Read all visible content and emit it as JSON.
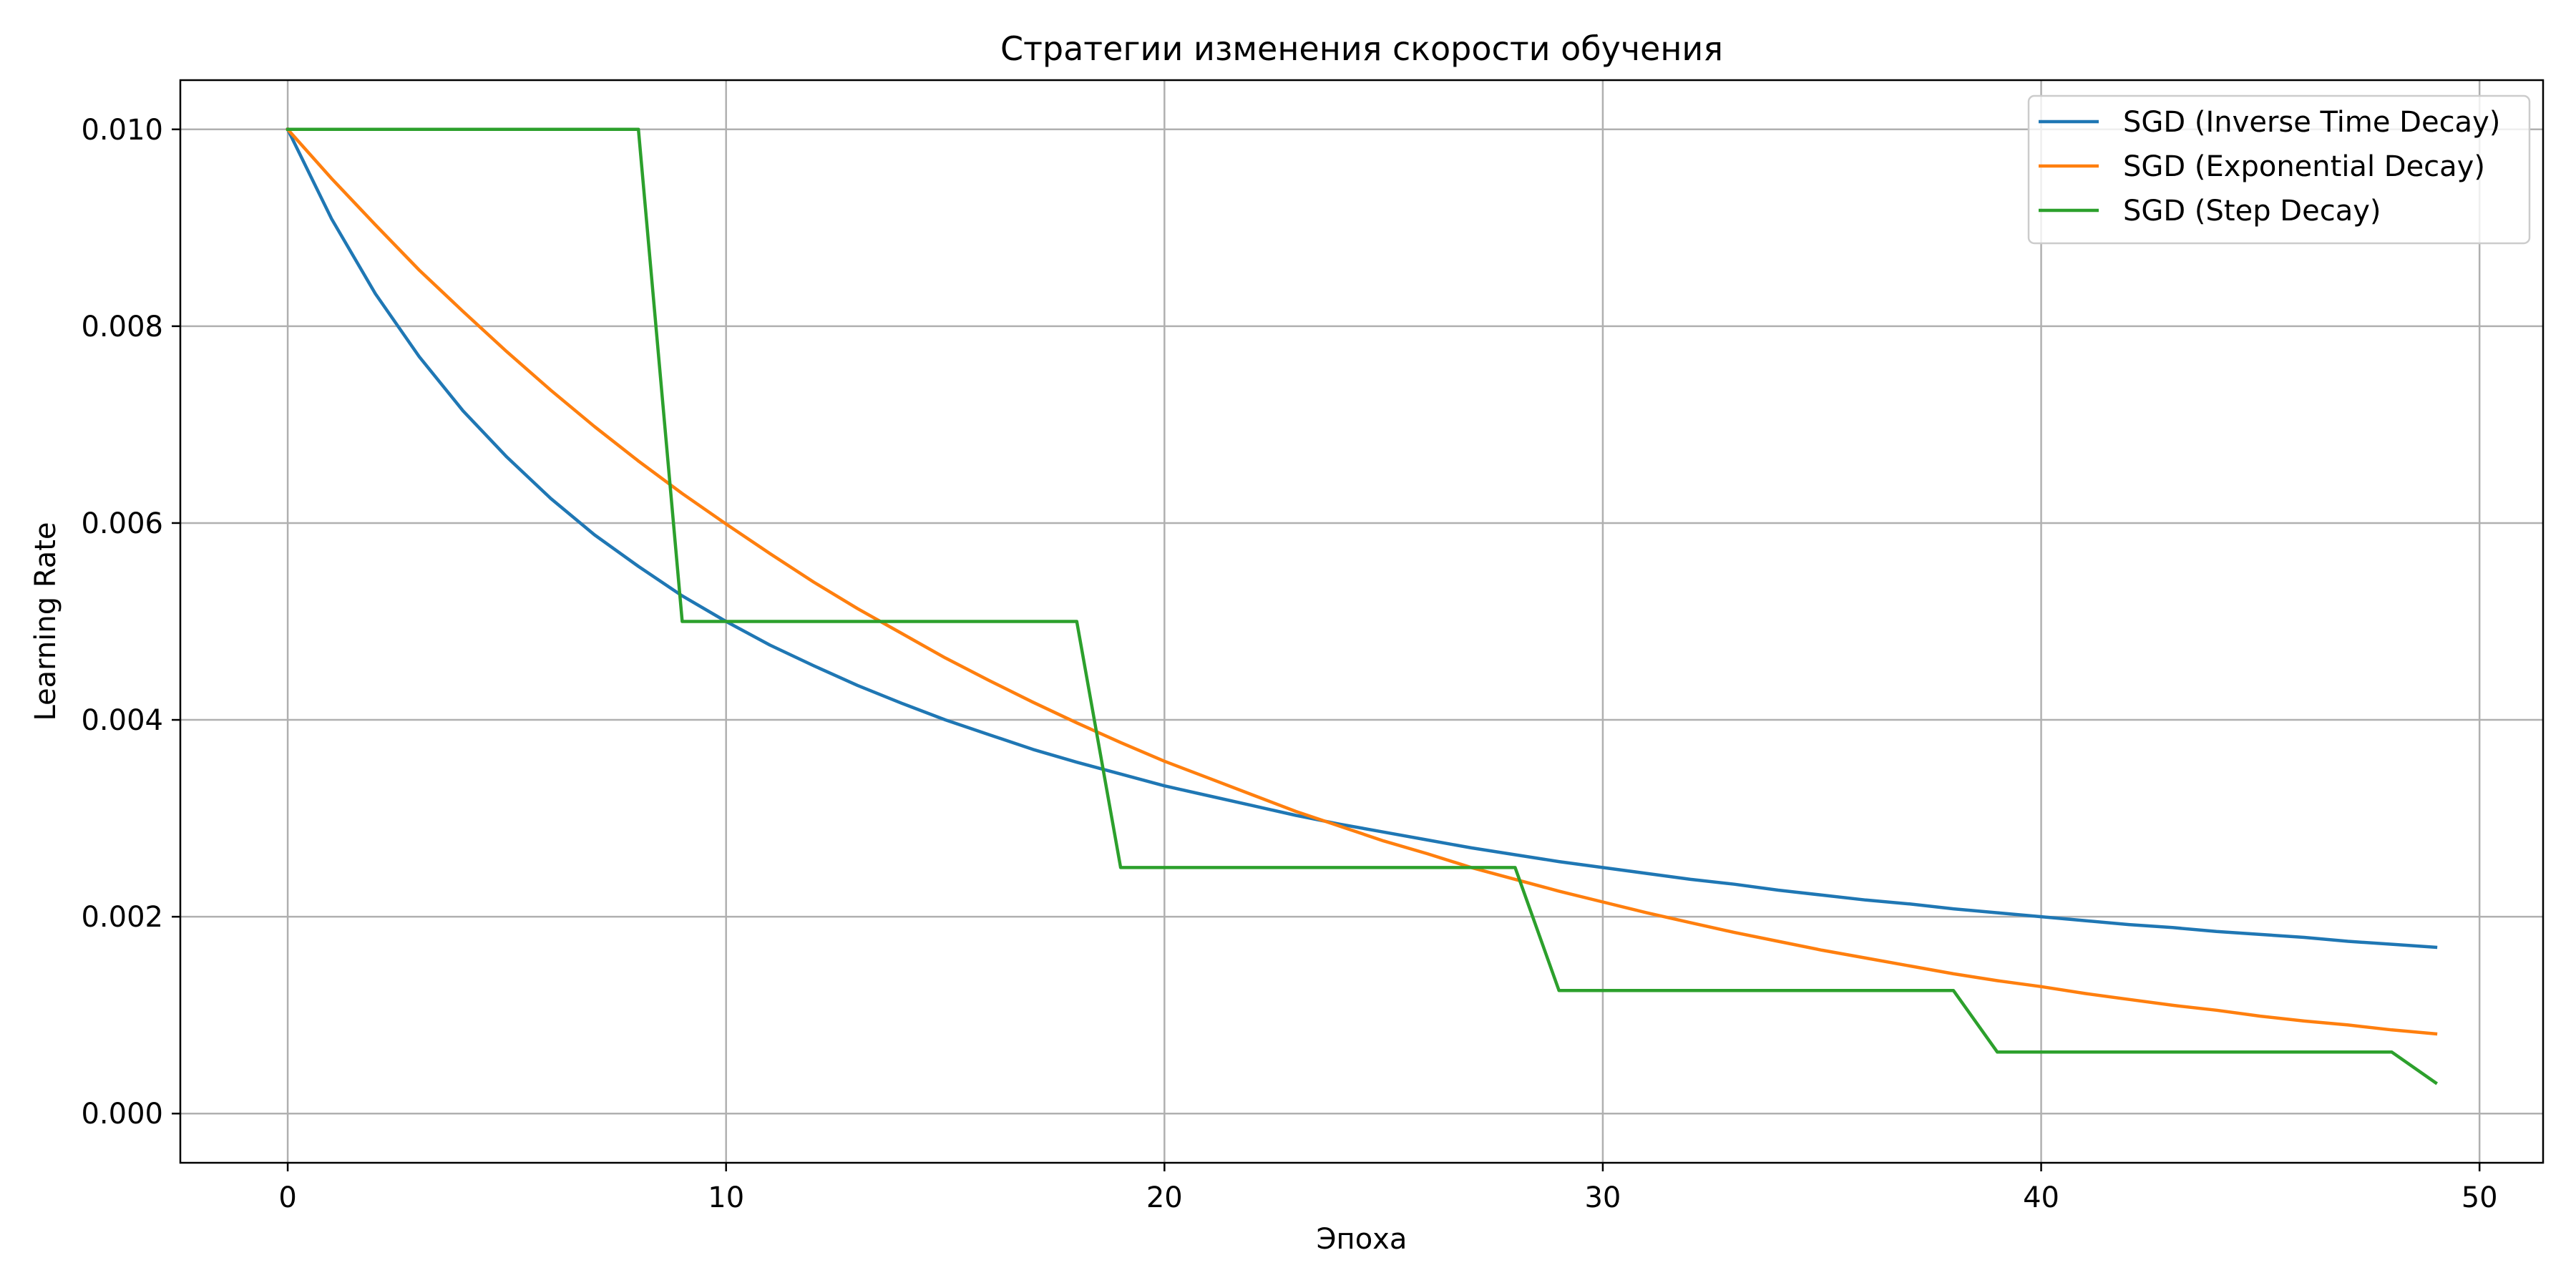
{
  "chart_data": {
    "type": "line",
    "title": "Стратегии изменения скорости обучения",
    "xlabel": "Эпоха",
    "ylabel": "Learning Rate",
    "xlim": [
      -2.45,
      51.45
    ],
    "ylim": [
      -0.0005,
      0.0105
    ],
    "xticks": [
      0,
      10,
      20,
      30,
      40,
      50
    ],
    "yticks": [
      0.0,
      0.002,
      0.004,
      0.006,
      0.008,
      0.01
    ],
    "ytick_labels": [
      "0.000",
      "0.002",
      "0.004",
      "0.006",
      "0.008",
      "0.010"
    ],
    "xtick_labels": [
      "0",
      "10",
      "20",
      "30",
      "40",
      "50"
    ],
    "grid": true,
    "legend_position": "top-right",
    "x": [
      0,
      1,
      2,
      3,
      4,
      5,
      6,
      7,
      8,
      9,
      10,
      11,
      12,
      13,
      14,
      15,
      16,
      17,
      18,
      19,
      20,
      21,
      22,
      23,
      24,
      25,
      26,
      27,
      28,
      29,
      30,
      31,
      32,
      33,
      34,
      35,
      36,
      37,
      38,
      39,
      40,
      41,
      42,
      43,
      44,
      45,
      46,
      47,
      48,
      49
    ],
    "series": [
      {
        "name": "SGD (Inverse Time Decay)",
        "color": "#1f77b4",
        "values": [
          0.01,
          0.00909,
          0.00833,
          0.00769,
          0.00714,
          0.00667,
          0.00625,
          0.00588,
          0.00556,
          0.00526,
          0.005,
          0.00476,
          0.00455,
          0.00435,
          0.00417,
          0.004,
          0.00385,
          0.0037,
          0.00357,
          0.00345,
          0.00333,
          0.00323,
          0.00313,
          0.00303,
          0.00294,
          0.00286,
          0.00278,
          0.0027,
          0.00263,
          0.00256,
          0.0025,
          0.00244,
          0.00238,
          0.00233,
          0.00227,
          0.00222,
          0.00217,
          0.00213,
          0.00208,
          0.00204,
          0.002,
          0.00196,
          0.00192,
          0.00189,
          0.00185,
          0.00182,
          0.00179,
          0.00175,
          0.00172,
          0.00169
        ]
      },
      {
        "name": "SGD (Exponential Decay)",
        "color": "#ff7f0e",
        "values": [
          0.01,
          0.0095,
          0.00903,
          0.00857,
          0.00815,
          0.00774,
          0.00735,
          0.00698,
          0.00663,
          0.0063,
          0.00599,
          0.00569,
          0.0054,
          0.00513,
          0.00488,
          0.00463,
          0.0044,
          0.00418,
          0.00397,
          0.00377,
          0.00358,
          0.00341,
          0.00324,
          0.00307,
          0.00292,
          0.00277,
          0.00264,
          0.0025,
          0.00238,
          0.00226,
          0.00215,
          0.00204,
          0.00194,
          0.00184,
          0.00175,
          0.00166,
          0.00158,
          0.0015,
          0.00142,
          0.00135,
          0.00129,
          0.00122,
          0.00116,
          0.0011,
          0.00105,
          0.00099,
          0.00094,
          0.0009,
          0.00085,
          0.00081
        ]
      },
      {
        "name": "SGD (Step Decay)",
        "color": "#2ca02c",
        "values": [
          0.01,
          0.01,
          0.01,
          0.01,
          0.01,
          0.01,
          0.01,
          0.01,
          0.01,
          0.005,
          0.005,
          0.005,
          0.005,
          0.005,
          0.005,
          0.005,
          0.005,
          0.005,
          0.005,
          0.0025,
          0.0025,
          0.0025,
          0.0025,
          0.0025,
          0.0025,
          0.0025,
          0.0025,
          0.0025,
          0.0025,
          0.00125,
          0.00125,
          0.00125,
          0.00125,
          0.00125,
          0.00125,
          0.00125,
          0.00125,
          0.00125,
          0.00125,
          0.000625,
          0.000625,
          0.000625,
          0.000625,
          0.000625,
          0.000625,
          0.000625,
          0.000625,
          0.000625,
          0.000625,
          0.0003125
        ]
      }
    ]
  }
}
